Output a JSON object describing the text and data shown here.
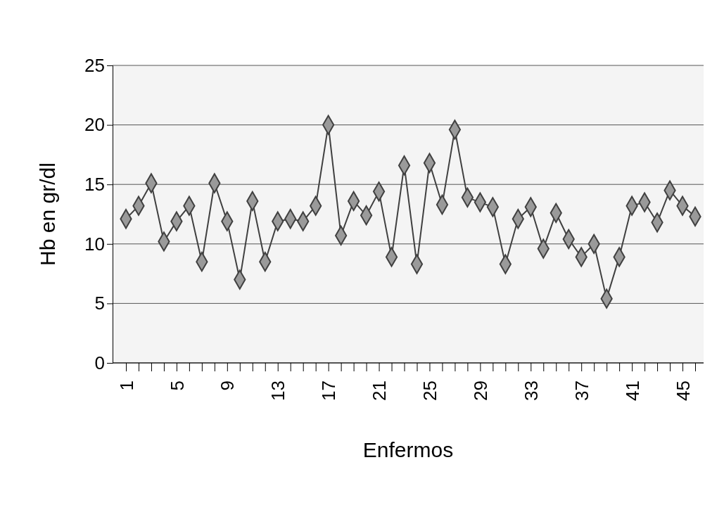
{
  "chart_data": {
    "type": "line",
    "xlabel": "Enfermos",
    "ylabel": "Hb en gr/dl",
    "categories": [
      "1",
      null,
      null,
      null,
      "5",
      null,
      null,
      null,
      "9",
      null,
      null,
      null,
      "13",
      null,
      null,
      null,
      "17",
      null,
      null,
      null,
      "21",
      null,
      null,
      null,
      "25",
      null,
      null,
      null,
      "29",
      null,
      null,
      null,
      "33",
      null,
      null,
      null,
      "37",
      null,
      null,
      null,
      "41",
      null,
      null,
      null,
      "45",
      null
    ],
    "series": [
      {
        "color": "#404040",
        "values": [
          12.1,
          13.2,
          15.1,
          10.2,
          11.9,
          13.2,
          8.5,
          15.1,
          11.9,
          7.0,
          13.6,
          8.5,
          11.9,
          12.1,
          11.9,
          13.2,
          20.0,
          10.7,
          13.6,
          12.4,
          14.4,
          8.9,
          16.6,
          8.3,
          16.8,
          13.3,
          19.6,
          13.9,
          13.5,
          13.1,
          8.3,
          12.1,
          13.1,
          9.6,
          12.6,
          10.4,
          8.9,
          10.0,
          5.4,
          8.9,
          13.2,
          13.5,
          11.8,
          14.5,
          13.2,
          12.3
        ]
      }
    ],
    "ylim": [
      0,
      25
    ],
    "yticks": [
      0,
      5,
      10,
      15,
      20,
      25
    ],
    "grid": "y",
    "marker": "diamond",
    "line_style": "solid"
  }
}
